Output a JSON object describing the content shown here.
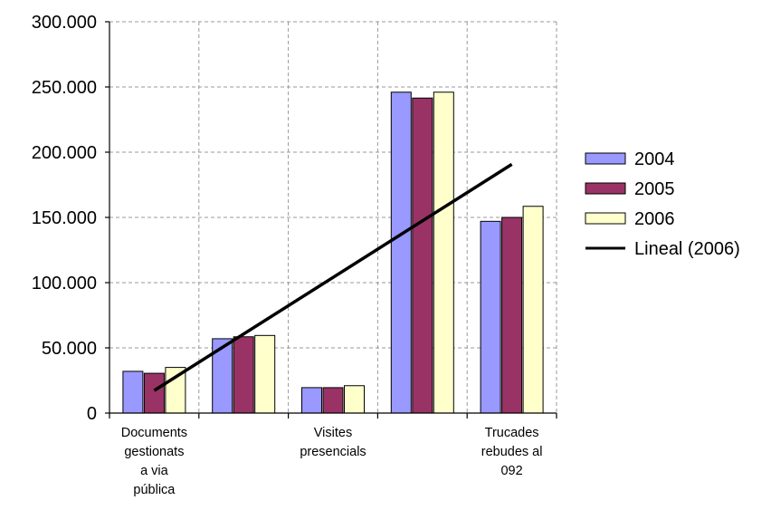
{
  "chart_data": {
    "type": "bar",
    "categories": [
      [
        "Documents",
        "gestionats",
        "a via",
        "pública"
      ],
      [],
      [
        "Visites",
        "presencials"
      ],
      [],
      [
        "Trucades",
        "rebudes al",
        "092"
      ]
    ],
    "series": [
      {
        "name": "2004",
        "color": "#9999ff",
        "values": [
          32000,
          57000,
          19500,
          246000,
          147000
        ]
      },
      {
        "name": "2005",
        "color": "#993366",
        "values": [
          30500,
          58500,
          19500,
          241500,
          150000
        ]
      },
      {
        "name": "2006",
        "color": "#ffffcc",
        "values": [
          35000,
          59500,
          21000,
          246000,
          158500
        ]
      }
    ],
    "trendline": {
      "name": "Lineal (2006)",
      "series": "2006",
      "type": "linear",
      "color": "#000000"
    },
    "ylim": [
      0,
      300000
    ],
    "yticks": [
      0,
      50000,
      100000,
      150000,
      200000,
      250000,
      300000
    ],
    "ytick_labels": [
      "0",
      "50.000",
      "100.000",
      "150.000",
      "200.000",
      "250.000",
      "300.000"
    ],
    "grid": true,
    "legend": "right",
    "title": "",
    "xlabel": "",
    "ylabel": ""
  }
}
